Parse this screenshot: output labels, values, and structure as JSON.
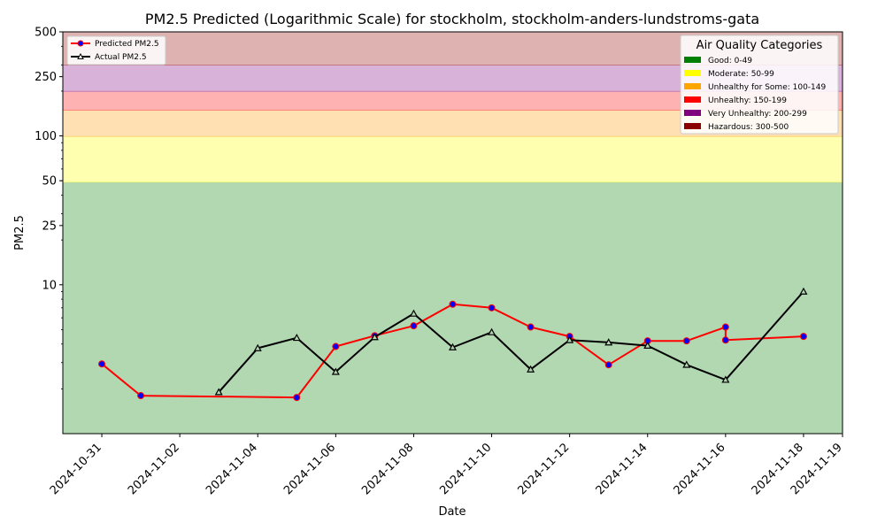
{
  "chart_data": {
    "type": "line",
    "title": "PM2.5 Predicted (Logarithmic Scale) for stockholm, stockholm-anders-lundstroms-gata",
    "xlabel": "Date",
    "ylabel": "PM2.5",
    "yscale": "log",
    "ylim": [
      1,
      500
    ],
    "xlim": [
      "2024-10-30",
      "2024-11-19"
    ],
    "x_ticks": [
      "2024-10-31",
      "2024-11-02",
      "2024-11-04",
      "2024-11-06",
      "2024-11-08",
      "2024-11-10",
      "2024-11-12",
      "2024-11-14",
      "2024-11-16",
      "2024-11-18",
      "2024-11-19"
    ],
    "y_ticks": [
      {
        "value": 10,
        "label": "10"
      },
      {
        "value": 25,
        "label": "25"
      },
      {
        "value": 50,
        "label": "50"
      },
      {
        "value": 100,
        "label": "100"
      },
      {
        "value": 250,
        "label": "250"
      },
      {
        "value": 500,
        "label": "500"
      }
    ],
    "bands": [
      {
        "label": "Good: 0-49",
        "from": 0,
        "to": 49,
        "fill": "#b2d8b1",
        "swatch": "#008000"
      },
      {
        "label": "Moderate: 50-99",
        "from": 49,
        "to": 99,
        "fill": "#ffffb0",
        "swatch": "#ffff00"
      },
      {
        "label": "Unhealthy for Some: 100-149",
        "from": 99,
        "to": 149,
        "fill": "#ffe0b2",
        "swatch": "#ffa500"
      },
      {
        "label": "Unhealthy: 150-199",
        "from": 149,
        "to": 199,
        "fill": "#ffb2b2",
        "swatch": "#ff0000"
      },
      {
        "label": "Very Unhealthy: 200-299",
        "from": 199,
        "to": 299,
        "fill": "#d9b2d9",
        "swatch": "#800080"
      },
      {
        "label": "Hazardous: 300-500",
        "from": 299,
        "to": 500,
        "fill": "#dfb2b2",
        "swatch": "#8b0000"
      }
    ],
    "legend_title": "Air Quality Categories",
    "series": [
      {
        "name": "Predicted PM2.5",
        "color": "#ff0000",
        "marker": "circle",
        "marker_color": "#0000ff",
        "points": [
          {
            "x": "2024-10-31",
            "y": 2.94
          },
          {
            "x": "2024-11-01",
            "y": 1.8
          },
          {
            "x": "2024-11-05",
            "y": 1.75
          },
          {
            "x": "2024-11-06",
            "y": 3.85
          },
          {
            "x": "2024-11-07",
            "y": 4.55
          },
          {
            "x": "2024-11-08",
            "y": 5.3
          },
          {
            "x": "2024-11-09",
            "y": 7.4
          },
          {
            "x": "2024-11-10",
            "y": 7.0
          },
          {
            "x": "2024-11-11",
            "y": 5.2
          },
          {
            "x": "2024-11-12",
            "y": 4.5
          },
          {
            "x": "2024-11-13",
            "y": 2.9
          },
          {
            "x": "2024-11-14",
            "y": 4.2
          },
          {
            "x": "2024-11-15",
            "y": 4.2
          },
          {
            "x": "2024-11-16",
            "y": 5.2
          },
          {
            "x": "2024-11-16",
            "y": 4.25
          },
          {
            "x": "2024-11-18",
            "y": 4.5
          }
        ]
      },
      {
        "name": "Actual PM2.5",
        "color": "#000000",
        "marker": "triangle",
        "marker_color": "#000000",
        "points": [
          {
            "x": "2024-11-03",
            "y": 1.9
          },
          {
            "x": "2024-11-04",
            "y": 3.75
          },
          {
            "x": "2024-11-05",
            "y": 4.4
          },
          {
            "x": "2024-11-06",
            "y": 2.6
          },
          {
            "x": "2024-11-07",
            "y": 4.45
          },
          {
            "x": "2024-11-08",
            "y": 6.4
          },
          {
            "x": "2024-11-09",
            "y": 3.8
          },
          {
            "x": "2024-11-10",
            "y": 4.8
          },
          {
            "x": "2024-11-11",
            "y": 2.7
          },
          {
            "x": "2024-11-12",
            "y": 4.25
          },
          {
            "x": "2024-11-13",
            "y": 4.1
          },
          {
            "x": "2024-11-14",
            "y": 3.9
          },
          {
            "x": "2024-11-15",
            "y": 2.9
          },
          {
            "x": "2024-11-16",
            "y": 2.3
          },
          {
            "x": "2024-11-18",
            "y": 9.0
          }
        ]
      }
    ]
  }
}
